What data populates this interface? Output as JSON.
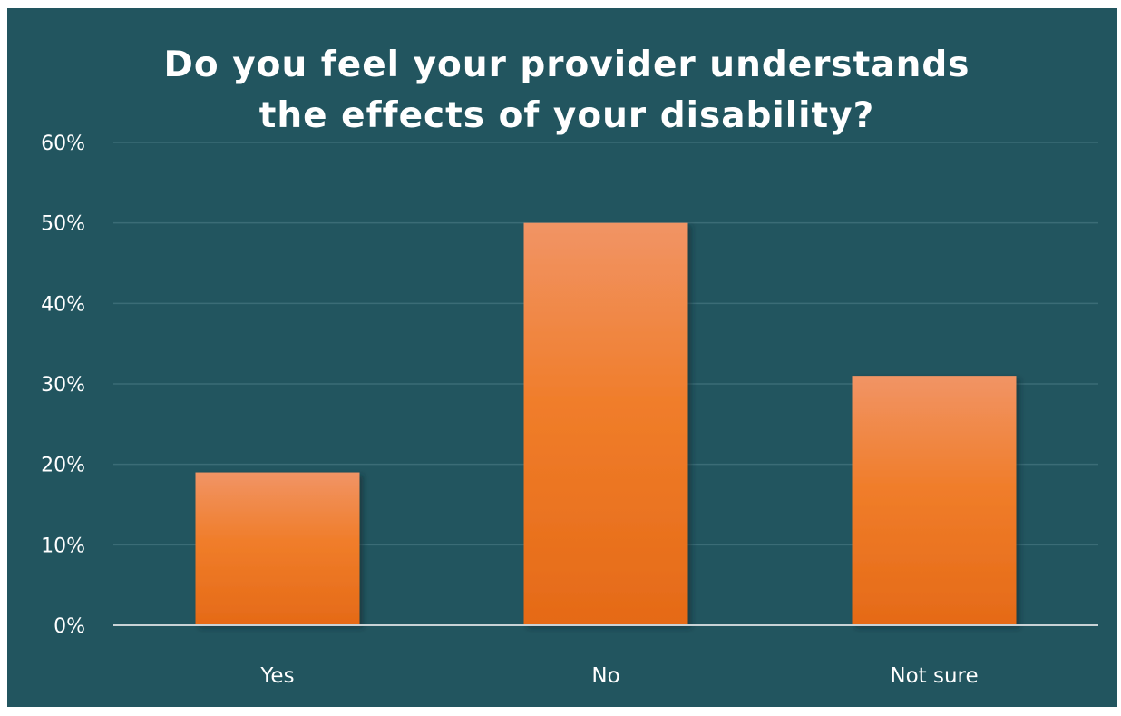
{
  "chart_data": {
    "type": "bar",
    "title_lines": [
      "Do you feel your provider understands",
      "the effects of your disability?"
    ],
    "categories": [
      "Yes",
      "No",
      "Not sure"
    ],
    "values": [
      19,
      50,
      31
    ],
    "value_unit": "%",
    "y_ticks": [
      "0%",
      "10%",
      "20%",
      "30%",
      "40%",
      "50%",
      "60%"
    ],
    "ylim": [
      0,
      60
    ],
    "ystep": 10,
    "grid": true,
    "legend": "none"
  },
  "colors": {
    "background": "#22555f",
    "grid": "#3b6c76",
    "axis": "#c9d3d6",
    "text": "#ffffff",
    "bar_top": "#f19465",
    "bar_mid": "#f07d2a",
    "bar_bottom": "#e56a17"
  }
}
